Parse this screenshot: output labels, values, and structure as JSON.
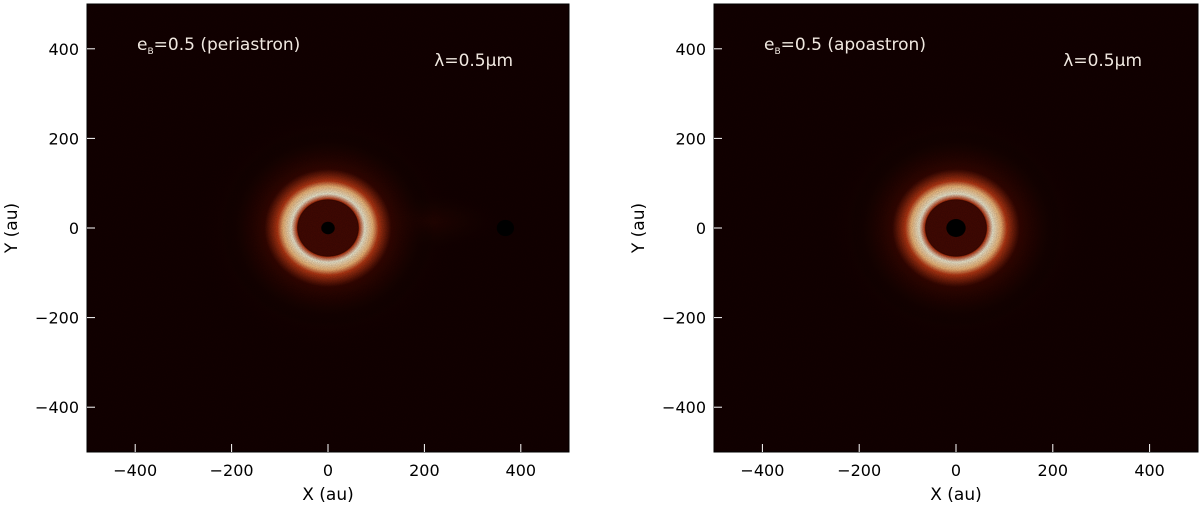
{
  "chart_data": [
    {
      "type": "heatmap",
      "title": "",
      "annotation": {
        "prefix": "e",
        "subscript": "B",
        "text": "=0.5 (periastron)"
      },
      "wavelength_label": "λ=0.5μm",
      "xlabel": "X (au)",
      "ylabel": "Y (au)",
      "xlim": [
        -500,
        500
      ],
      "ylim": [
        -500,
        500
      ],
      "xticks": [
        -400,
        -200,
        0,
        200,
        400
      ],
      "yticks": [
        -400,
        -200,
        0,
        200,
        400
      ],
      "ring": {
        "center": [
          0,
          0
        ],
        "inner_radius_au": 65,
        "outer_radius_au": 105
      },
      "central_mask": {
        "center": [
          0,
          0
        ],
        "radius_au": 14
      },
      "companion": {
        "x": 368,
        "y": 0,
        "radius_au": 18
      },
      "colormap": [
        "#000000",
        "#3a0600",
        "#c03a14",
        "#ffc280",
        "#fffae0"
      ]
    },
    {
      "type": "heatmap",
      "title": "",
      "annotation": {
        "prefix": "e",
        "subscript": "B",
        "text": "=0.5 (apoastron)"
      },
      "wavelength_label": "λ=0.5μm",
      "xlabel": "X (au)",
      "ylabel": "Y (au)",
      "xlim": [
        -500,
        500
      ],
      "ylim": [
        -500,
        500
      ],
      "xticks": [
        -400,
        -200,
        0,
        200,
        400
      ],
      "yticks": [
        -400,
        -200,
        0,
        200,
        400
      ],
      "ring": {
        "center": [
          0,
          0
        ],
        "inner_radius_au": 65,
        "outer_radius_au": 105
      },
      "central_mask": {
        "center": [
          0,
          0
        ],
        "radius_au": 20
      },
      "companion": null,
      "colormap": [
        "#000000",
        "#3a0600",
        "#c03a14",
        "#ffc280",
        "#fffae0"
      ]
    }
  ]
}
